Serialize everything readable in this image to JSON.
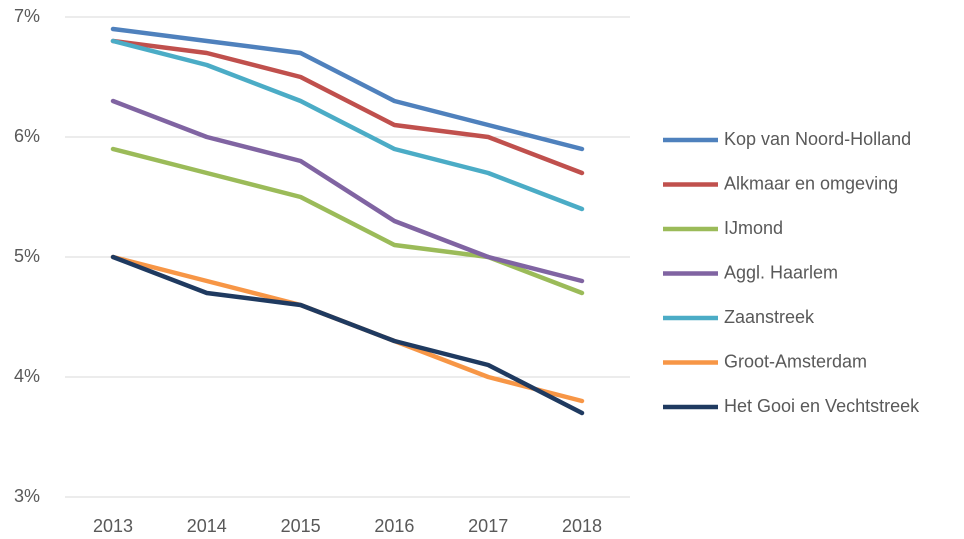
{
  "chart_data": {
    "type": "line",
    "categories": [
      "2013",
      "2014",
      "2015",
      "2016",
      "2017",
      "2018"
    ],
    "series": [
      {
        "name": "Kop van Noord-Holland",
        "color": "#4f81bd",
        "values": [
          6.9,
          6.8,
          6.7,
          6.3,
          6.1,
          5.9
        ]
      },
      {
        "name": "Alkmaar en omgeving",
        "color": "#c0504d",
        "values": [
          6.8,
          6.7,
          6.5,
          6.1,
          6.0,
          5.7
        ]
      },
      {
        "name": "IJmond",
        "color": "#9bbb59",
        "values": [
          5.9,
          5.7,
          5.5,
          5.1,
          5.0,
          4.7
        ]
      },
      {
        "name": "Aggl. Haarlem",
        "color": "#8064a2",
        "values": [
          6.3,
          6.0,
          5.8,
          5.3,
          5.0,
          4.8
        ]
      },
      {
        "name": "Zaanstreek",
        "color": "#4bacc6",
        "values": [
          6.8,
          6.6,
          6.3,
          5.9,
          5.7,
          5.4
        ]
      },
      {
        "name": "Groot-Amsterdam",
        "color": "#f79646",
        "values": [
          5.0,
          4.8,
          4.6,
          4.3,
          4.0,
          3.8
        ]
      },
      {
        "name": "Het Gooi en Vechtstreek",
        "color": "#1f3a60",
        "values": [
          5.0,
          4.7,
          4.6,
          4.3,
          4.1,
          3.7
        ]
      }
    ],
    "ylim": [
      3,
      7
    ],
    "yticks": [
      {
        "value": 3,
        "label": "3%"
      },
      {
        "value": 4,
        "label": "4%"
      },
      {
        "value": 5,
        "label": "5%"
      },
      {
        "value": 6,
        "label": "6%"
      },
      {
        "value": 7,
        "label": "7%"
      }
    ],
    "grid": true,
    "legend": "right"
  }
}
